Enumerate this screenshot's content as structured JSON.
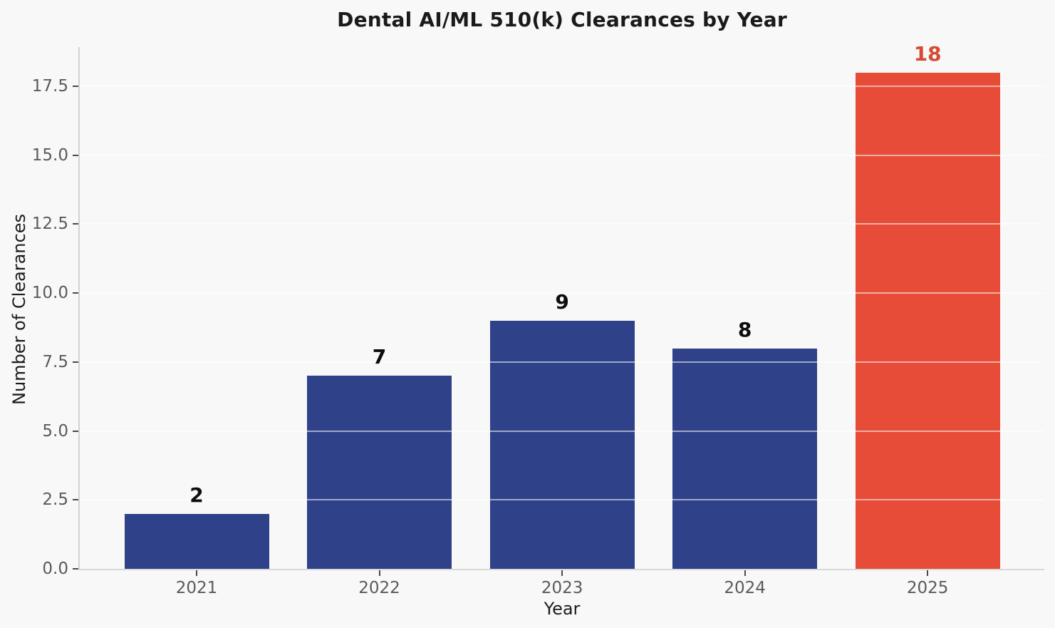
{
  "chart_data": {
    "type": "bar",
    "title": "Dental AI/ML 510(k) Clearances by Year",
    "xlabel": "Year",
    "ylabel": "Number of Clearances",
    "categories": [
      "2021",
      "2022",
      "2023",
      "2024",
      "2025"
    ],
    "values": [
      2,
      7,
      9,
      8,
      18
    ],
    "value_labels": [
      "2",
      "7",
      "9",
      "8",
      "18"
    ],
    "highlight_index": 4,
    "ylim": [
      0,
      18.92
    ],
    "yticks": [
      0,
      2.5,
      5,
      7.5,
      10,
      12.5,
      15,
      17.5
    ],
    "ytick_labels": [
      "0.0",
      "2.5",
      "5.0",
      "7.5",
      "10.0",
      "12.5",
      "15.0",
      "17.5"
    ],
    "grid": "horizontal",
    "legend": "none",
    "colors": {
      "bar": "#2e4189",
      "highlight_bar": "#e64c38",
      "value_label": "#0d0d0d",
      "highlight_value_label": "#d54b35",
      "figure_bg": "#f8f8f8",
      "tick_label": "#5a5a5a",
      "axis_label": "#1c1c1c",
      "title": "#1a1a1a"
    }
  }
}
